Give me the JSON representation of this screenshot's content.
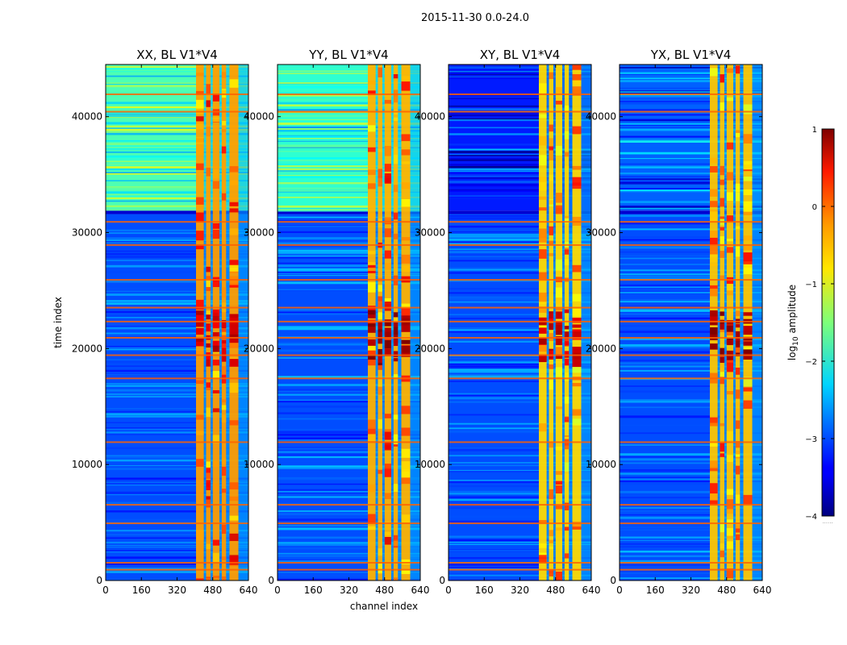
{
  "chart_data": {
    "type": "heatmap",
    "suptitle": "2015-11-30 0.0-24.0",
    "xlabel": "channel index",
    "ylabel": "time index",
    "xlim": [
      0,
      640
    ],
    "ylim": [
      0,
      44500
    ],
    "xticks": [
      "0",
      "160",
      "320",
      "480",
      "640"
    ],
    "yticks": [
      "0",
      "10000",
      "20000",
      "30000",
      "40000"
    ],
    "colormap": "jet",
    "colorbar": {
      "label": "log",
      "label_sub": "10",
      "label_rest": " amplitude",
      "range": [
        -4,
        1
      ],
      "ticks": [
        "1",
        "0",
        "−1",
        "−2",
        "−3",
        "−4"
      ],
      "footer": "......"
    },
    "panels": [
      {
        "title": "XX, BL V1*V4",
        "upper_level": 0.45,
        "rfi_level": 0.72,
        "flare_level": 0.88
      },
      {
        "title": "YY, BL V1*V4",
        "upper_level": 0.42,
        "rfi_level": 0.7,
        "flare_level": 0.94
      },
      {
        "title": "XY, BL V1*V4",
        "upper_level": 0.15,
        "rfi_level": 0.66,
        "flare_level": 0.88
      },
      {
        "title": "YX, BL V1*V4",
        "upper_level": 0.22,
        "rfi_level": 0.68,
        "flare_level": 0.93
      }
    ],
    "features": {
      "rfi_channels": [
        [
          405,
          440
        ],
        [
          450,
          470
        ],
        [
          480,
          510
        ],
        [
          520,
          540
        ],
        [
          555,
          595
        ]
      ],
      "gap_time": [
        31600,
        31900
      ],
      "flare_time": [
        19000,
        23500
      ],
      "bright_rows": [
        1000,
        1600,
        5000,
        6600,
        12000,
        17500,
        19500,
        21000,
        22400,
        23600,
        26000,
        29000,
        31000,
        40500,
        42000
      ]
    }
  }
}
